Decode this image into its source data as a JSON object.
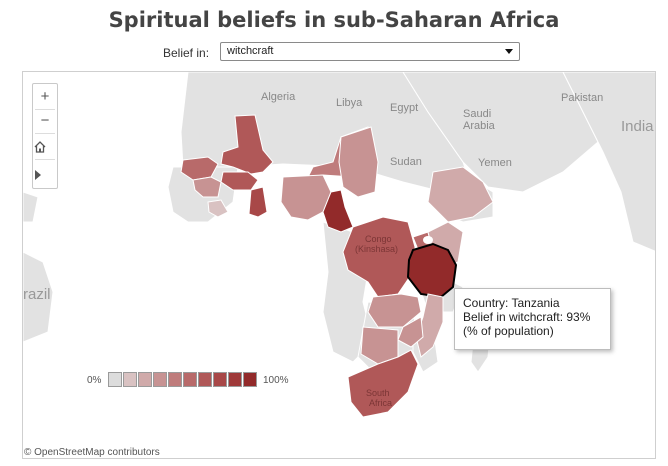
{
  "title": "Spiritual beliefs in sub-Saharan Africa",
  "filter": {
    "label": "Belief in:",
    "selected": "witchcraft"
  },
  "map": {
    "place_labels": {
      "algeria": "Algeria",
      "libya": "Libya",
      "egypt": "Egypt",
      "saudi": "Saudi",
      "arabia": "Arabia",
      "pakistan": "Pakistan",
      "india": "India",
      "sudan": "Sudan",
      "yemen": "Yemen",
      "brazil": "razil",
      "congo_1": "Congo",
      "congo_2": "(Kinshasa)",
      "south_1": "South",
      "south_2": "Africa"
    },
    "controls": {
      "zoom_in": "+",
      "zoom_out": "−",
      "home_icon": "home-icon",
      "play_icon": "play-icon"
    },
    "legend": {
      "min_label": "0%",
      "max_label": "100%",
      "colors": [
        "#dcdcdc",
        "#d9c2c2",
        "#d0aaaa",
        "#c79393",
        "#bf7c7c",
        "#b86a6a",
        "#b05858",
        "#a84848",
        "#9f3939",
        "#922a2a"
      ]
    },
    "tooltip": {
      "line1": "Country: Tanzania",
      "line2": "Belief in witchcraft: 93%",
      "line3": "(% of population)"
    },
    "attribution": "© OpenStreetMap contributors",
    "colors": {
      "land": "#e2e2e2",
      "border": "#ffffff",
      "highlight_border": "#000000"
    }
  }
}
